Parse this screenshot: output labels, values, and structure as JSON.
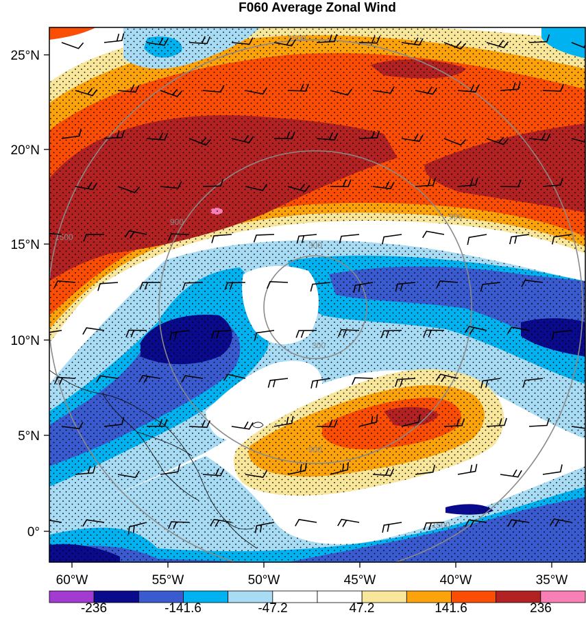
{
  "title": "F060 Average Zonal Wind",
  "axes": {
    "lat_labels": [
      "25°N",
      "20°N",
      "15°N",
      "10°N",
      "5°N",
      "0°"
    ],
    "lon_labels": [
      "60°W",
      "55°W",
      "50°W",
      "45°W",
      "40°W",
      "35°W"
    ]
  },
  "colorbar": {
    "colors": [
      "#a13bd1",
      "#0a0a8c",
      "#3a5bd0",
      "#00b3f0",
      "#a8dcf5",
      "#ffffff",
      "#ffffff",
      "#f8e79b",
      "#fca30c",
      "#fc4d04",
      "#b22222",
      "#f77fb6"
    ],
    "labels": [
      "-236",
      "-141.6",
      "-47.2",
      "47.2",
      "141.6",
      "236"
    ]
  },
  "range_rings": {
    "labels": [
      "300",
      "900",
      "1500"
    ]
  }
}
